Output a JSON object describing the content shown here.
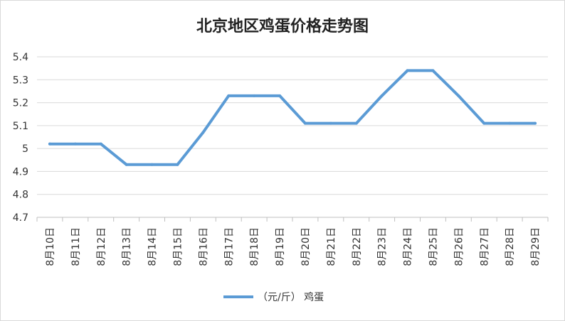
{
  "chart_data": {
    "type": "line",
    "title": "北京地区鸡蛋价格走势图",
    "categories": [
      "8月10日",
      "8月11日",
      "8月12日",
      "8月13日",
      "8月14日",
      "8月15日",
      "8月16日",
      "8月17日",
      "8月18日",
      "8月19日",
      "8月20日",
      "8月21日",
      "8月22日",
      "8月23日",
      "8月24日",
      "8月25日",
      "8月26日",
      "8月27日",
      "8月28日",
      "8月29日"
    ],
    "series": [
      {
        "name": "（元/斤） 鸡蛋",
        "color": "#5b9bd5",
        "values": [
          5.02,
          5.02,
          5.02,
          4.93,
          4.93,
          4.93,
          5.07,
          5.23,
          5.23,
          5.23,
          5.11,
          5.11,
          5.11,
          5.23,
          5.34,
          5.34,
          5.23,
          5.11,
          5.11,
          5.11
        ]
      }
    ],
    "ylim": [
      4.7,
      5.4
    ],
    "yticks": [
      "4.7",
      "4.8",
      "4.9",
      "5",
      "5.1",
      "5.2",
      "5.3",
      "5.4"
    ],
    "grid": true,
    "legend_position": "bottom"
  }
}
